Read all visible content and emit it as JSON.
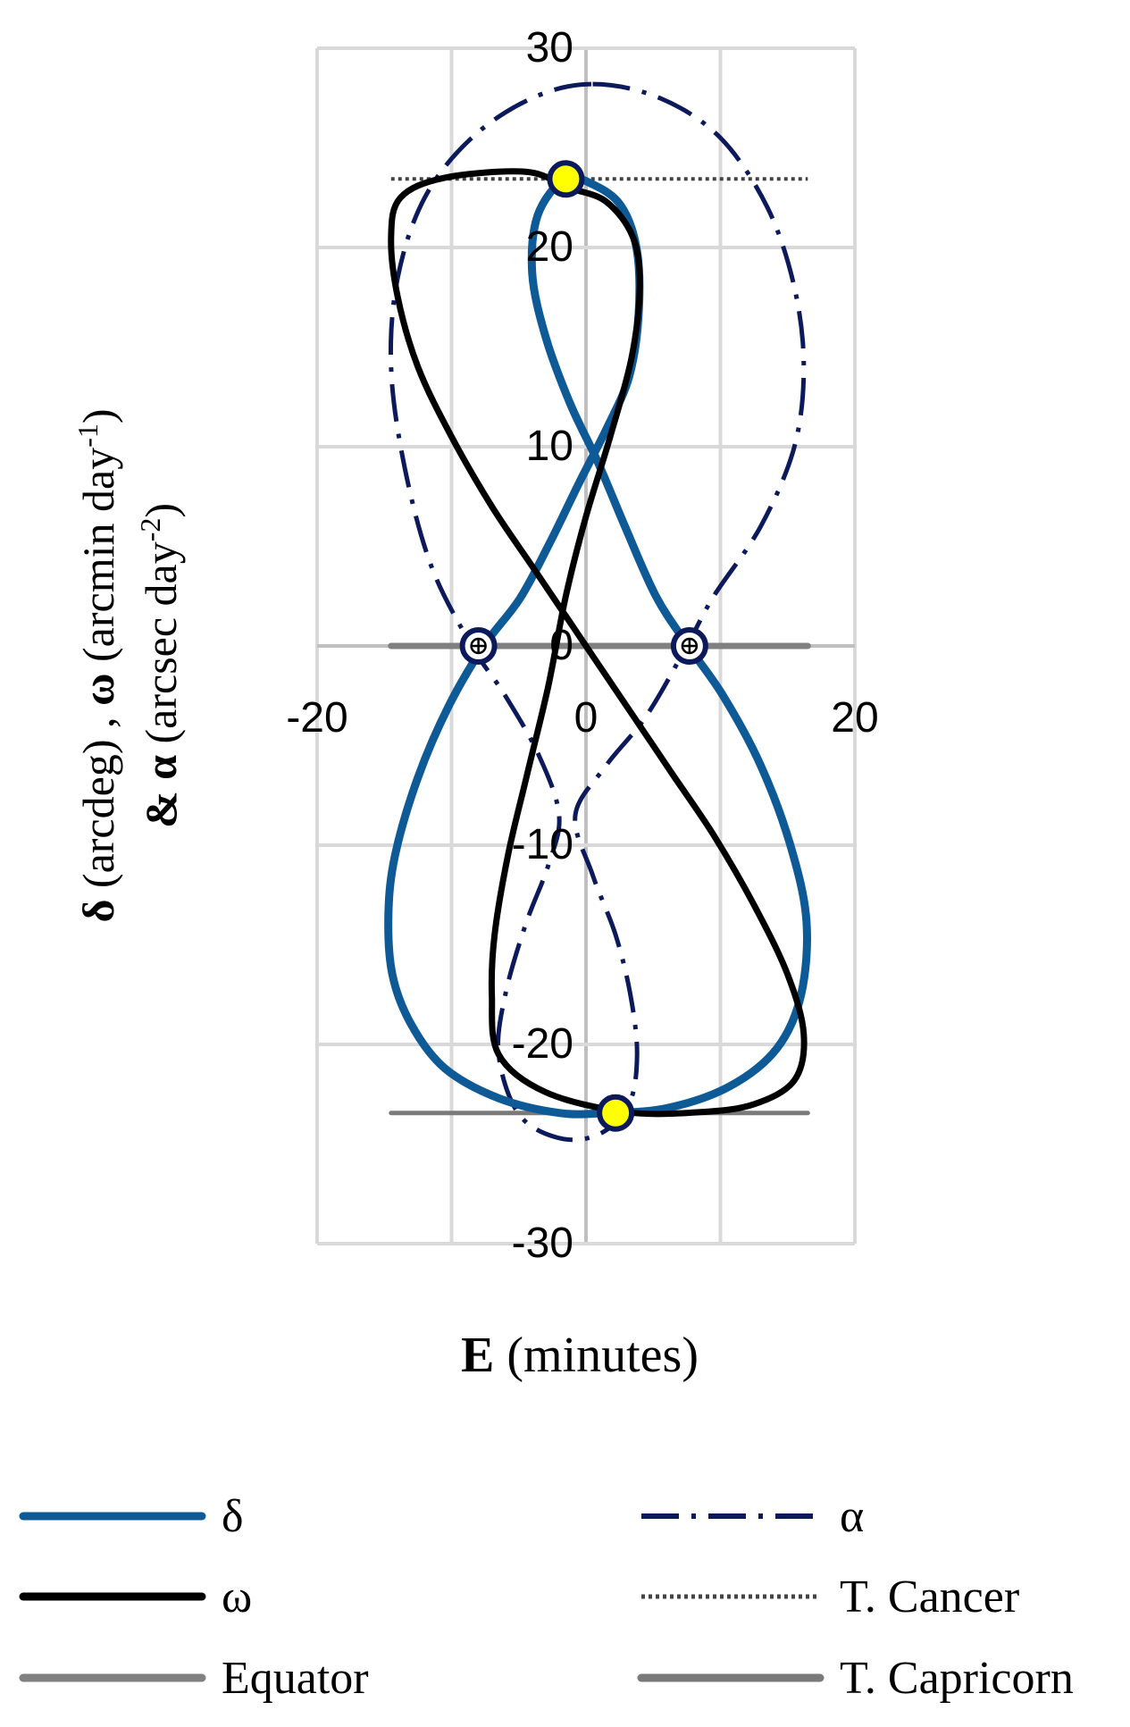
{
  "chart_data": {
    "type": "line",
    "title": "",
    "xlabel": {
      "bold": "E",
      "rest": " (minutes)"
    },
    "ylabel": {
      "line1": [
        {
          "text": "δ",
          "bold": true
        },
        {
          "text": " (arcdeg) ,  ",
          "bold": false
        },
        {
          "text": "ω",
          "bold": true
        },
        {
          "text": " (arcmin day",
          "bold": false
        },
        {
          "text": "-1",
          "bold": false,
          "sup": true
        },
        {
          "text": ")",
          "bold": false
        }
      ],
      "line2": [
        {
          "text": "& ",
          "bold": true
        },
        {
          "text": "α",
          "bold": true
        },
        {
          "text": " (arcsec day",
          "bold": false
        },
        {
          "text": "-2",
          "bold": false,
          "sup": true
        },
        {
          "text": ")",
          "bold": false
        }
      ]
    },
    "xlim": [
      -20,
      20
    ],
    "ylim": [
      -30,
      30
    ],
    "x_ticks": [
      -20,
      0,
      20
    ],
    "y_ticks": [
      -30,
      -20,
      -10,
      0,
      10,
      20,
      30
    ],
    "x_tick_labels": [
      "-20",
      "0",
      "20"
    ],
    "y_tick_labels": [
      "-30",
      "-20",
      "-10",
      "0",
      "10",
      "20",
      "30"
    ],
    "grid": true,
    "legend_position": "bottom",
    "colors": {
      "delta": "#0e5a96",
      "omega": "#000000",
      "alpha": "#0c1a5c",
      "cancer": "#444444",
      "capricorn": "#7a7a7a",
      "equator": "#808080",
      "marker_yellow": "#ffff00",
      "marker_edge": "#0c1a5c"
    },
    "series": [
      {
        "name": "δ",
        "key": "delta",
        "style": "solid",
        "points": [
          [
            -1.6,
            23.44
          ],
          [
            0.4,
            23.2
          ],
          [
            2.6,
            22.1
          ],
          [
            3.8,
            19.8
          ],
          [
            3.9,
            16.5
          ],
          [
            3.2,
            13.5
          ],
          [
            1.6,
            11.0
          ],
          [
            -0.5,
            8.2
          ],
          [
            -2.6,
            5.3
          ],
          [
            -4.9,
            2.4
          ],
          [
            -7.6,
            0.0
          ],
          [
            -10.2,
            -3.0
          ],
          [
            -12.5,
            -6.6
          ],
          [
            -14.2,
            -10.5
          ],
          [
            -14.7,
            -13.5
          ],
          [
            -14.4,
            -16.5
          ],
          [
            -13.0,
            -19.0
          ],
          [
            -10.5,
            -21.2
          ],
          [
            -6.5,
            -22.7
          ],
          [
            -2.0,
            -23.44
          ],
          [
            1.5,
            -23.44
          ],
          [
            6.0,
            -23.2
          ],
          [
            10.7,
            -22.1
          ],
          [
            14.2,
            -20.2
          ],
          [
            16.0,
            -17.5
          ],
          [
            16.4,
            -13.8
          ],
          [
            15.2,
            -10.0
          ],
          [
            13.0,
            -6.0
          ],
          [
            10.2,
            -2.5
          ],
          [
            7.6,
            0.0
          ],
          [
            5.2,
            2.5
          ],
          [
            2.9,
            6.0
          ],
          [
            0.9,
            9.2
          ],
          [
            -1.2,
            12.2
          ],
          [
            -3.0,
            15.5
          ],
          [
            -4.0,
            18.7
          ],
          [
            -3.6,
            21.6
          ],
          [
            -1.6,
            23.44
          ]
        ]
      },
      {
        "name": "ω",
        "key": "omega",
        "style": "solid",
        "points": [
          [
            -1.3,
            23.0
          ],
          [
            -4.5,
            23.8
          ],
          [
            -10.5,
            23.5
          ],
          [
            -13.8,
            22.5
          ],
          [
            -14.5,
            20.5
          ],
          [
            -14.0,
            17.5
          ],
          [
            -12.5,
            14.0
          ],
          [
            -10.0,
            10.5
          ],
          [
            -7.0,
            7.0
          ],
          [
            -4.0,
            4.0
          ],
          [
            -1.5,
            1.5
          ],
          [
            1.0,
            -1.0
          ],
          [
            3.5,
            -3.5
          ],
          [
            6.5,
            -6.5
          ],
          [
            9.5,
            -9.5
          ],
          [
            12.5,
            -13.0
          ],
          [
            15.0,
            -16.5
          ],
          [
            16.2,
            -19.5
          ],
          [
            15.5,
            -21.8
          ],
          [
            12.5,
            -23.0
          ],
          [
            8.5,
            -23.4
          ],
          [
            3.0,
            -23.4
          ],
          [
            -3.0,
            -22.4
          ],
          [
            -6.5,
            -20.5
          ],
          [
            -7.0,
            -17.5
          ],
          [
            -6.8,
            -14.5
          ],
          [
            -5.8,
            -10.5
          ],
          [
            -4.4,
            -6.5
          ],
          [
            -2.8,
            -2.0
          ],
          [
            -1.5,
            2.5
          ],
          [
            0.0,
            6.5
          ],
          [
            1.8,
            10.5
          ],
          [
            3.4,
            14.5
          ],
          [
            4.0,
            18.0
          ],
          [
            3.5,
            20.5
          ],
          [
            1.5,
            22.3
          ],
          [
            -1.3,
            23.0
          ]
        ]
      },
      {
        "name": "α",
        "key": "alpha",
        "style": "dashdot",
        "points": [
          [
            0.5,
            28.2
          ],
          [
            5.5,
            27.5
          ],
          [
            10.0,
            25.5
          ],
          [
            13.5,
            22.0
          ],
          [
            15.5,
            18.0
          ],
          [
            16.2,
            14.0
          ],
          [
            15.5,
            10.0
          ],
          [
            13.0,
            6.0
          ],
          [
            9.5,
            2.5
          ],
          [
            7.5,
            0.0
          ],
          [
            4.5,
            -3.5
          ],
          [
            1.5,
            -6.0
          ],
          [
            -0.8,
            -8.5
          ],
          [
            0.5,
            -11.5
          ],
          [
            2.2,
            -14.5
          ],
          [
            3.3,
            -17.5
          ],
          [
            3.8,
            -20.5
          ],
          [
            3.2,
            -23.0
          ],
          [
            1.0,
            -24.5
          ],
          [
            -2.0,
            -24.7
          ],
          [
            -5.0,
            -23.5
          ],
          [
            -6.5,
            -20.5
          ],
          [
            -6.0,
            -17.5
          ],
          [
            -4.5,
            -14.0
          ],
          [
            -2.8,
            -11.0
          ],
          [
            -2.0,
            -8.5
          ],
          [
            -3.5,
            -5.5
          ],
          [
            -6.0,
            -2.5
          ],
          [
            -8.5,
            0.0
          ],
          [
            -11.5,
            4.0
          ],
          [
            -13.5,
            9.0
          ],
          [
            -14.5,
            14.0
          ],
          [
            -14.0,
            18.5
          ],
          [
            -12.0,
            22.5
          ],
          [
            -8.5,
            25.5
          ],
          [
            -4.0,
            27.5
          ],
          [
            0.5,
            28.2
          ]
        ]
      }
    ],
    "reference_lines": [
      {
        "name": "T. Cancer",
        "key": "cancer",
        "y": 23.44,
        "x_range": [
          -14.5,
          16.5
        ],
        "style": "dotted"
      },
      {
        "name": "T. Capricorn",
        "key": "capricorn",
        "y": -23.44,
        "x_range": [
          -14.5,
          16.5
        ],
        "style": "solid"
      },
      {
        "name": "Equator",
        "key": "equator",
        "y": 0,
        "x_range": [
          -14.5,
          16.5
        ],
        "style": "solid"
      }
    ],
    "markers": [
      {
        "type": "solstice",
        "x": -1.5,
        "y": 23.44
      },
      {
        "type": "solstice",
        "x": 2.2,
        "y": -23.44
      },
      {
        "type": "equinox",
        "x": -8.0,
        "y": 0
      },
      {
        "type": "equinox",
        "x": 7.7,
        "y": 0
      }
    ],
    "legend": [
      {
        "label": "δ",
        "key": "delta",
        "style": "solid"
      },
      {
        "label": "α",
        "key": "alpha",
        "style": "dashdot"
      },
      {
        "label": "ω",
        "key": "omega",
        "style": "solid"
      },
      {
        "label": "T. Cancer",
        "key": "cancer",
        "style": "dotted"
      },
      {
        "label": "Equator",
        "key": "equator",
        "style": "solid"
      },
      {
        "label": "T. Capricorn",
        "key": "capricorn",
        "style": "solid"
      }
    ]
  }
}
